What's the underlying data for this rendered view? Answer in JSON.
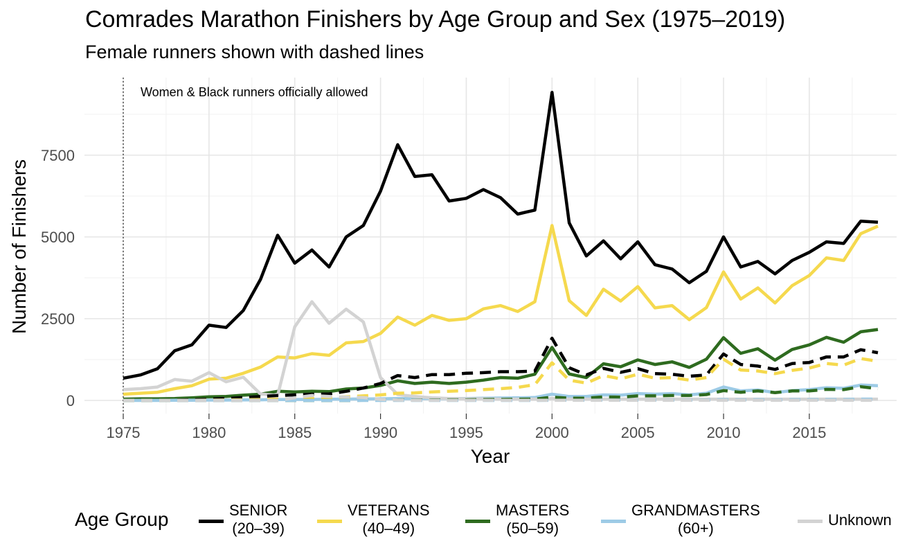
{
  "title": "Comrades Marathon Finishers by Age Group and Sex (1975–2019)",
  "subtitle": "Female runners shown with dashed lines",
  "annotation": "Women & Black runners officially allowed",
  "legend": {
    "title": "Age Group",
    "items": [
      {
        "label": "SENIOR\n(20–39)",
        "color": "#000000"
      },
      {
        "label": "VETERANS\n(40–49)",
        "color": "#F5D94E"
      },
      {
        "label": "MASTERS\n(50–59)",
        "color": "#2E6B1F"
      },
      {
        "label": "GRANDMASTERS\n(60+)",
        "color": "#9DCBE6"
      },
      {
        "label": "Unknown",
        "color": "#D3D3D3"
      }
    ]
  },
  "chart_data": {
    "type": "line",
    "title": "Comrades Marathon Finishers by Age Group and Sex (1975–2019)",
    "subtitle": "Female runners shown with dashed lines",
    "xlabel": "Year",
    "ylabel": "Number of Finishers",
    "xlim": [
      1975,
      2019
    ],
    "ylim": [
      0,
      9500
    ],
    "x_ticks": [
      1975,
      1980,
      1985,
      1990,
      1995,
      2000,
      2005,
      2010,
      2015
    ],
    "y_ticks": [
      0,
      2500,
      5000,
      7500
    ],
    "grid": true,
    "legend_position": "bottom",
    "vline": {
      "x": 1975,
      "style": "dotted",
      "label": "Women & Black runners officially allowed"
    },
    "x": [
      1975,
      1976,
      1977,
      1978,
      1979,
      1980,
      1981,
      1982,
      1983,
      1984,
      1985,
      1986,
      1987,
      1988,
      1989,
      1990,
      1991,
      1992,
      1993,
      1994,
      1995,
      1996,
      1997,
      1998,
      1999,
      2000,
      2001,
      2002,
      2003,
      2004,
      2005,
      2006,
      2007,
      2008,
      2009,
      2010,
      2011,
      2012,
      2013,
      2014,
      2015,
      2016,
      2017,
      2018,
      2019
    ],
    "series": [
      {
        "name": "SENIOR (20–39)",
        "sex": "Male",
        "color": "#000000",
        "dash": false,
        "values": [
          680,
          780,
          970,
          1520,
          1700,
          2300,
          2230,
          2750,
          3700,
          5050,
          4200,
          4600,
          4080,
          5000,
          5350,
          6400,
          7820,
          6850,
          6900,
          6100,
          6180,
          6450,
          6200,
          5700,
          5820,
          9420,
          5430,
          4420,
          4880,
          4330,
          4850,
          4150,
          4020,
          3600,
          3950,
          5000,
          4080,
          4250,
          3870,
          4280,
          4530,
          4850,
          4800,
          5480,
          5450
        ]
      },
      {
        "name": "SENIOR (20–39)",
        "sex": "Female",
        "color": "#000000",
        "dash": true,
        "values": [
          0,
          0,
          5,
          10,
          20,
          40,
          60,
          90,
          120,
          150,
          170,
          190,
          200,
          280,
          380,
          520,
          760,
          700,
          790,
          790,
          830,
          850,
          880,
          880,
          900,
          1900,
          1000,
          780,
          980,
          860,
          970,
          820,
          800,
          740,
          780,
          1420,
          1100,
          1050,
          950,
          1130,
          1160,
          1330,
          1330,
          1550,
          1460
        ]
      },
      {
        "name": "VETERANS (40–49)",
        "sex": "Male",
        "color": "#F5D94E",
        "dash": false,
        "values": [
          190,
          220,
          250,
          360,
          450,
          650,
          680,
          830,
          1020,
          1330,
          1300,
          1430,
          1380,
          1760,
          1800,
          2050,
          2550,
          2300,
          2600,
          2450,
          2500,
          2800,
          2900,
          2720,
          3020,
          5350,
          3050,
          2600,
          3400,
          3040,
          3480,
          2830,
          2900,
          2470,
          2840,
          3930,
          3100,
          3440,
          2980,
          3510,
          3820,
          4360,
          4280,
          5100,
          5330
        ]
      },
      {
        "name": "VETERANS (40–49)",
        "sex": "Female",
        "color": "#F5D94E",
        "dash": true,
        "values": [
          0,
          0,
          0,
          5,
          5,
          10,
          15,
          20,
          30,
          40,
          50,
          60,
          80,
          110,
          140,
          170,
          220,
          230,
          260,
          280,
          300,
          330,
          360,
          400,
          480,
          1150,
          620,
          530,
          760,
          660,
          800,
          680,
          700,
          620,
          700,
          1260,
          930,
          900,
          820,
          920,
          990,
          1130,
          1080,
          1280,
          1200
        ]
      },
      {
        "name": "MASTERS (50–59)",
        "sex": "Male",
        "color": "#2E6B1F",
        "dash": false,
        "values": [
          40,
          50,
          50,
          60,
          80,
          110,
          120,
          160,
          190,
          280,
          260,
          280,
          270,
          350,
          380,
          460,
          600,
          520,
          560,
          520,
          560,
          620,
          700,
          680,
          800,
          1620,
          810,
          700,
          1120,
          1030,
          1240,
          1100,
          1180,
          1010,
          1260,
          1920,
          1440,
          1580,
          1230,
          1560,
          1700,
          1930,
          1780,
          2100,
          2170
        ]
      },
      {
        "name": "MASTERS (50–59)",
        "sex": "Female",
        "color": "#2E6B1F",
        "dash": true,
        "values": [
          0,
          0,
          0,
          0,
          0,
          0,
          0,
          0,
          0,
          0,
          0,
          0,
          0,
          0,
          5,
          5,
          10,
          10,
          15,
          20,
          20,
          25,
          30,
          35,
          40,
          100,
          70,
          70,
          110,
          100,
          140,
          140,
          150,
          150,
          180,
          300,
          250,
          290,
          240,
          290,
          290,
          340,
          330,
          420,
          360
        ]
      },
      {
        "name": "GRANDMASTERS (60+)",
        "sex": "Male",
        "color": "#9DCBE6",
        "dash": false,
        "values": [
          0,
          0,
          0,
          5,
          5,
          10,
          10,
          15,
          20,
          25,
          30,
          30,
          35,
          40,
          45,
          50,
          60,
          55,
          60,
          55,
          60,
          70,
          75,
          80,
          90,
          190,
          120,
          120,
          170,
          160,
          210,
          190,
          210,
          170,
          220,
          410,
          290,
          320,
          240,
          300,
          330,
          390,
          370,
          470,
          450
        ]
      },
      {
        "name": "GRANDMASTERS (60+)",
        "sex": "Female",
        "color": "#9DCBE6",
        "dash": true,
        "values": [
          0,
          0,
          0,
          0,
          0,
          0,
          0,
          0,
          0,
          0,
          0,
          0,
          0,
          0,
          0,
          0,
          0,
          0,
          0,
          0,
          0,
          0,
          0,
          0,
          0,
          5,
          5,
          5,
          10,
          10,
          10,
          10,
          10,
          10,
          15,
          25,
          20,
          25,
          20,
          25,
          25,
          30,
          30,
          40,
          40
        ]
      },
      {
        "name": "Unknown",
        "sex": "Male",
        "color": "#D3D3D3",
        "dash": false,
        "values": [
          330,
          360,
          410,
          640,
          590,
          850,
          570,
          710,
          200,
          150,
          2250,
          3020,
          2360,
          2790,
          2400,
          700,
          180,
          120,
          80,
          60,
          50,
          50,
          40,
          40,
          40,
          60,
          40,
          40,
          40,
          40,
          40,
          40,
          40,
          40,
          40,
          40,
          40,
          40,
          40,
          40,
          40,
          40,
          40,
          40,
          40
        ]
      },
      {
        "name": "Unknown",
        "sex": "Female",
        "color": "#D3D3D3",
        "dash": true,
        "values": [
          0,
          0,
          0,
          0,
          0,
          0,
          0,
          0,
          0,
          0,
          80,
          150,
          120,
          100,
          90,
          30,
          10,
          5,
          5,
          5,
          5,
          5,
          5,
          5,
          5,
          5,
          5,
          5,
          5,
          5,
          5,
          5,
          5,
          5,
          5,
          5,
          5,
          5,
          5,
          5,
          5,
          5,
          5,
          5,
          5
        ]
      }
    ]
  }
}
